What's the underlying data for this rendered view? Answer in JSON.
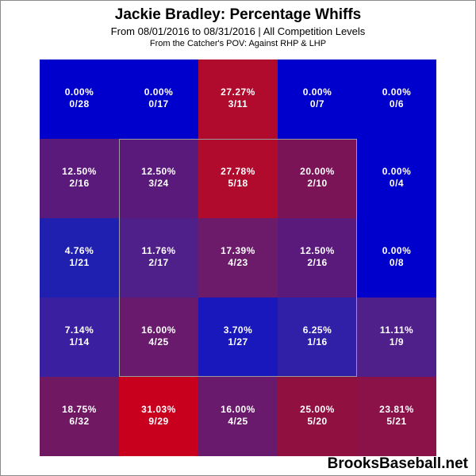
{
  "header": {
    "title": "Jackie Bradley: Percentage Whiffs",
    "subtitle": "From 08/01/2016 to 08/31/2016 | All Competition Levels",
    "subtitle2": "From the Catcher's POV:  Against RHP & LHP"
  },
  "watermark": "BrooksBaseball.net",
  "chart_data": {
    "type": "heatmap",
    "title": "Jackie Bradley: Percentage Whiffs",
    "rows": 5,
    "cols": 5,
    "cells": [
      [
        {
          "pct": "0.00%",
          "frac": "0/28",
          "color": "#0000cc"
        },
        {
          "pct": "0.00%",
          "frac": "0/17",
          "color": "#0000cc"
        },
        {
          "pct": "27.27%",
          "frac": "3/11",
          "color": "#b00a2c"
        },
        {
          "pct": "0.00%",
          "frac": "0/7",
          "color": "#0000cc"
        },
        {
          "pct": "0.00%",
          "frac": "0/6",
          "color": "#0000cc"
        }
      ],
      [
        {
          "pct": "12.50%",
          "frac": "2/16",
          "color": "#5a1a7c"
        },
        {
          "pct": "12.50%",
          "frac": "3/24",
          "color": "#5a1a7c"
        },
        {
          "pct": "27.78%",
          "frac": "5/18",
          "color": "#b00a2c"
        },
        {
          "pct": "20.00%",
          "frac": "2/10",
          "color": "#7a1457"
        },
        {
          "pct": "0.00%",
          "frac": "0/4",
          "color": "#0000cc"
        }
      ],
      [
        {
          "pct": "4.76%",
          "frac": "1/21",
          "color": "#2020b0"
        },
        {
          "pct": "11.76%",
          "frac": "2/17",
          "color": "#50208a"
        },
        {
          "pct": "17.39%",
          "frac": "4/23",
          "color": "#6c1a6a"
        },
        {
          "pct": "12.50%",
          "frac": "2/16",
          "color": "#5a1a7c"
        },
        {
          "pct": "0.00%",
          "frac": "0/8",
          "color": "#0000cc"
        }
      ],
      [
        {
          "pct": "7.14%",
          "frac": "1/14",
          "color": "#3a1fa0"
        },
        {
          "pct": "16.00%",
          "frac": "4/25",
          "color": "#6a1a6c"
        },
        {
          "pct": "3.70%",
          "frac": "1/27",
          "color": "#1818bc"
        },
        {
          "pct": "6.25%",
          "frac": "1/16",
          "color": "#3020a8"
        },
        {
          "pct": "11.11%",
          "frac": "1/9",
          "color": "#50208a"
        }
      ],
      [
        {
          "pct": "18.75%",
          "frac": "6/32",
          "color": "#701862"
        },
        {
          "pct": "31.03%",
          "frac": "9/29",
          "color": "#c8001e"
        },
        {
          "pct": "16.00%",
          "frac": "4/25",
          "color": "#6a1a6c"
        },
        {
          "pct": "25.00%",
          "frac": "5/20",
          "color": "#901040"
        },
        {
          "pct": "23.81%",
          "frac": "5/21",
          "color": "#8a1248"
        }
      ]
    ]
  }
}
